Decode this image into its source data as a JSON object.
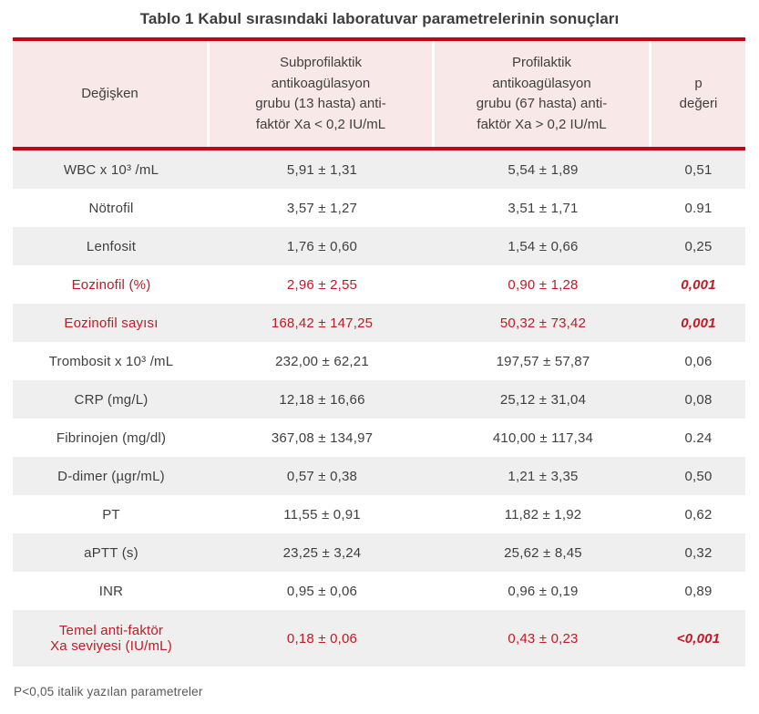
{
  "title": "Tablo 1 Kabul sırasındaki laboratuvar parametrelerinin sonuçları",
  "colors": {
    "accent_red": "#be0912",
    "header_pink": "#f9e8e8",
    "row_gray": "#efefef",
    "highlight_red": "#c01b25",
    "text_gray": "#3f3f3f"
  },
  "table": {
    "headers": {
      "variable": "Değişken",
      "group1": "Subprofilaktik\nantikoagülasyon\ngrubu (13 hasta) anti-\nfaktör Xa < 0,2 IU/mL",
      "group2": "Profilaktik\nantikoagülasyon\ngrubu (67 hasta) anti-\nfaktör Xa > 0,2 IU/mL",
      "p": "p\ndeğeri"
    },
    "rows": [
      {
        "label": "WBC x 10³ /mL",
        "sub": "5,91 ± 1,31",
        "pro": "5,54 ± 1,89",
        "p": "0,51",
        "highlight": false
      },
      {
        "label": "Nötrofil",
        "sub": "3,57 ± 1,27",
        "pro": "3,51 ± 1,71",
        "p": "0.91",
        "highlight": false
      },
      {
        "label": "Lenfosit",
        "sub": "1,76 ± 0,60",
        "pro": "1,54 ± 0,66",
        "p": "0,25",
        "highlight": false
      },
      {
        "label": "Eozinofil (%)",
        "sub": "2,96 ± 2,55",
        "pro": "0,90 ± 1,28",
        "p": "0,001",
        "highlight": true
      },
      {
        "label": "Eozinofil sayısı",
        "sub": "168,42 ± 147,25",
        "pro": "50,32 ± 73,42",
        "p": "0,001",
        "highlight": true
      },
      {
        "label": "Trombosit x 10³ /mL",
        "sub": "232,00 ± 62,21",
        "pro": "197,57 ± 57,87",
        "p": "0,06",
        "highlight": false
      },
      {
        "label": "CRP (mg/L)",
        "sub": "12,18 ± 16,66",
        "pro": "25,12 ± 31,04",
        "p": "0,08",
        "highlight": false
      },
      {
        "label": "Fibrinojen (mg/dl)",
        "sub": "367,08 ± 134,97",
        "pro": "410,00 ± 117,34",
        "p": "0.24",
        "highlight": false
      },
      {
        "label": "D-dimer (µgr/mL)",
        "sub": "0,57 ± 0,38",
        "pro": "1,21 ± 3,35",
        "p": "0,50",
        "highlight": false
      },
      {
        "label": "PT",
        "sub": "11,55 ± 0,91",
        "pro": "11,82 ± 1,92",
        "p": "0,62",
        "highlight": false
      },
      {
        "label": "aPTT (s)",
        "sub": "23,25 ± 3,24",
        "pro": "25,62 ± 8,45",
        "p": "0,32",
        "highlight": false
      },
      {
        "label": "INR",
        "sub": "0,95 ± 0,06",
        "pro": "0,96 ± 0,19",
        "p": "0,89",
        "highlight": false
      },
      {
        "label": "Temel anti-faktör\nXa seviyesi (IU/mL)",
        "sub": "0,18 ± 0,06",
        "pro": "0,43 ± 0,23",
        "p": "<0,001",
        "highlight": true
      }
    ]
  },
  "footnote": "P<0,05 italik yazılan parametreler"
}
